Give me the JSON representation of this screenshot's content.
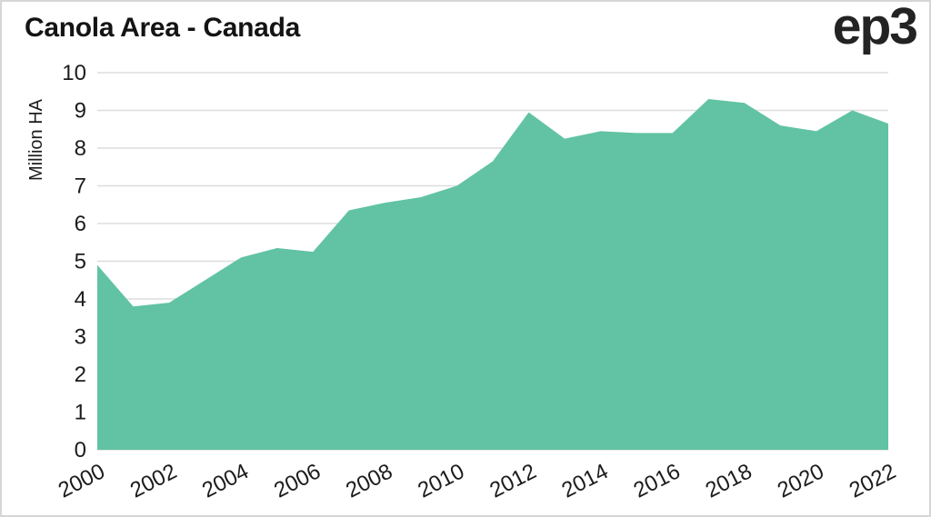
{
  "header": {
    "title": "Canola Area - Canada",
    "logo": "ep3"
  },
  "colors": {
    "area_fill": "#61c3a3",
    "gridline": "#dddddd",
    "text": "#1c1c1c",
    "frame_border": "#d6d6d6"
  },
  "chart_data": {
    "type": "area",
    "title": "Canola Area - Canada",
    "xlabel": "",
    "ylabel": "Million HA",
    "x": [
      2000,
      2001,
      2002,
      2003,
      2004,
      2005,
      2006,
      2007,
      2008,
      2009,
      2010,
      2011,
      2012,
      2013,
      2014,
      2015,
      2016,
      2017,
      2018,
      2019,
      2020,
      2021,
      2022
    ],
    "series": [
      {
        "name": "Canola area",
        "values": [
          4.9,
          3.8,
          3.9,
          4.5,
          5.1,
          5.35,
          5.25,
          6.35,
          6.55,
          6.7,
          7.0,
          7.65,
          8.95,
          8.25,
          8.45,
          8.4,
          8.4,
          9.3,
          9.2,
          8.6,
          8.45,
          9.0,
          8.65
        ]
      }
    ],
    "ylim": [
      0,
      10
    ],
    "yticks": [
      0,
      1,
      2,
      3,
      4,
      5,
      6,
      7,
      8,
      9,
      10
    ],
    "xticks": [
      2000,
      2002,
      2004,
      2006,
      2008,
      2010,
      2012,
      2014,
      2016,
      2018,
      2020,
      2022
    ],
    "x_tick_rotation_deg": -27,
    "grid": true,
    "legend": false
  }
}
